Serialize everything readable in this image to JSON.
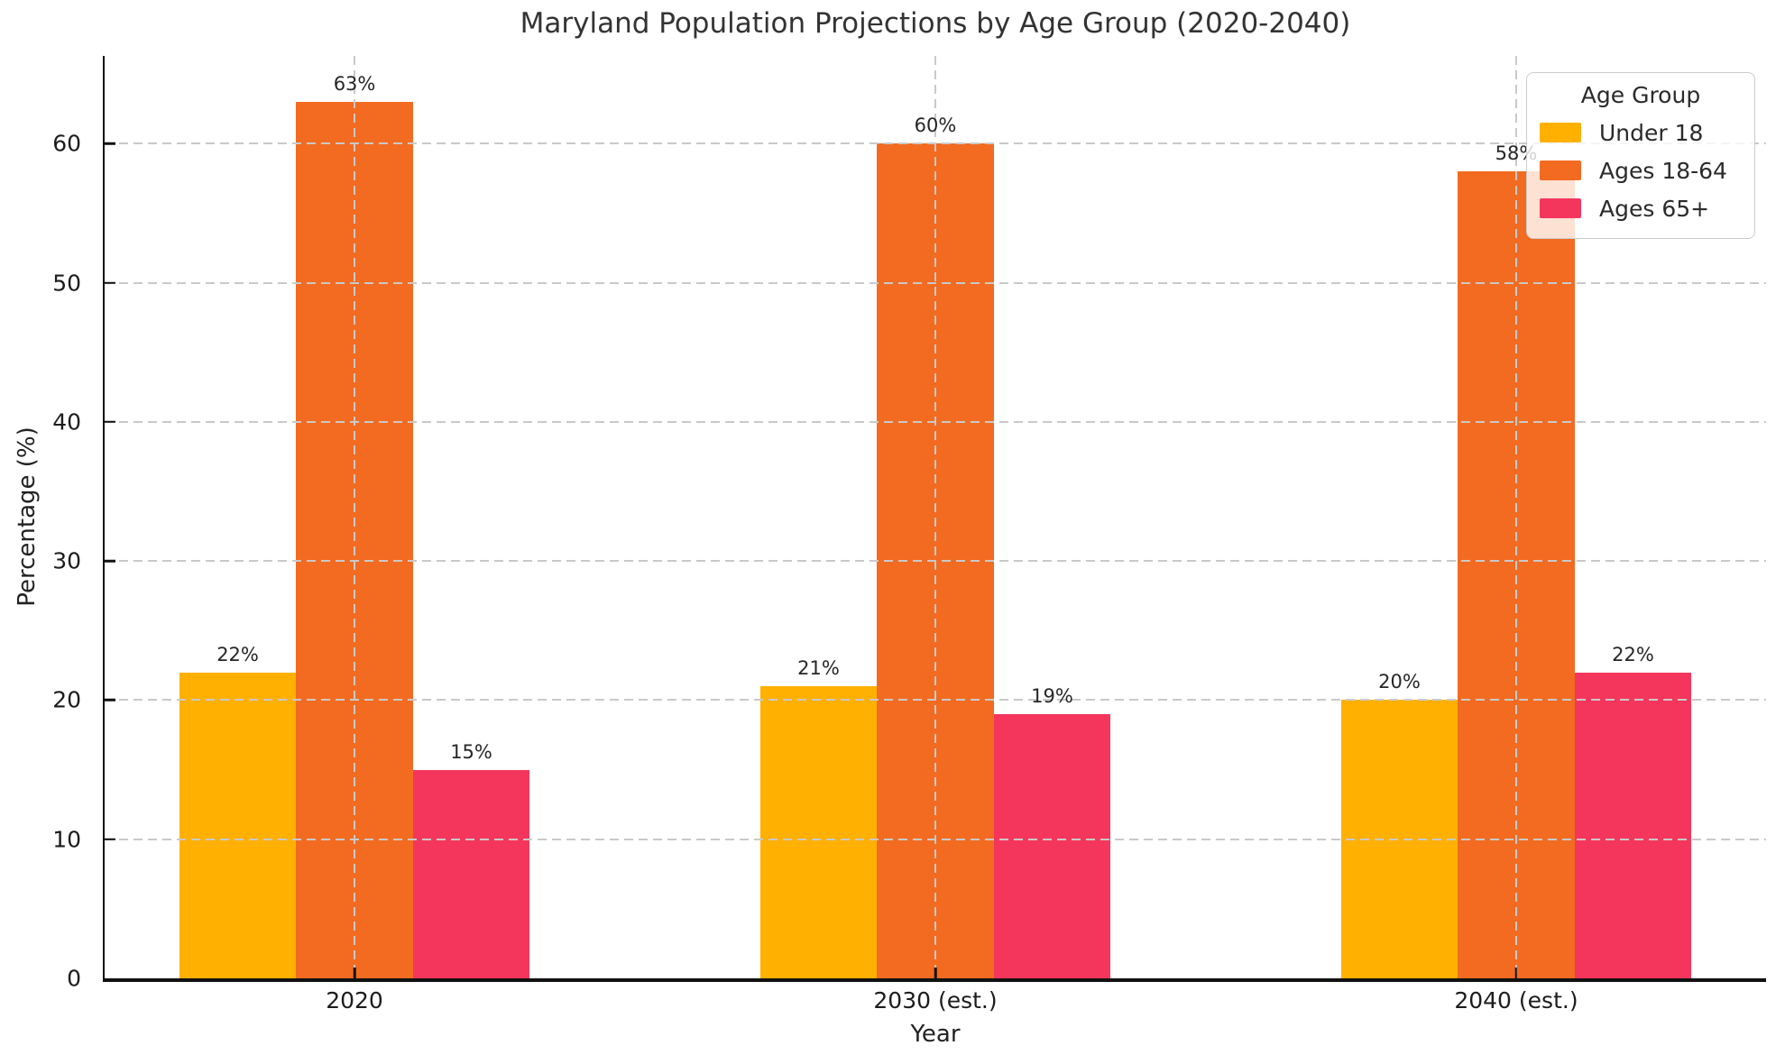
{
  "chart_data": {
    "type": "bar",
    "title": "Maryland Population Projections by Age Group (2020-2040)",
    "xlabel": "Year",
    "ylabel": "Percentage (%)",
    "categories": [
      "2020",
      "2030 (est.)",
      "2040 (est.)"
    ],
    "series": [
      {
        "name": "Under 18",
        "color": "#FFB000",
        "values": [
          22,
          21,
          20
        ]
      },
      {
        "name": "Ages 18-64",
        "color": "#F26B21",
        "values": [
          63,
          60,
          58
        ]
      },
      {
        "name": "Ages 65+",
        "color": "#F5365C",
        "values": [
          15,
          19,
          22
        ]
      }
    ],
    "value_suffix": "%",
    "yticks": [
      0,
      10,
      20,
      30,
      40,
      50,
      60
    ],
    "ylim": [
      0,
      66.3
    ],
    "grid": "dashed-both",
    "legend": {
      "title": "Age Group",
      "position": "upper right"
    }
  }
}
